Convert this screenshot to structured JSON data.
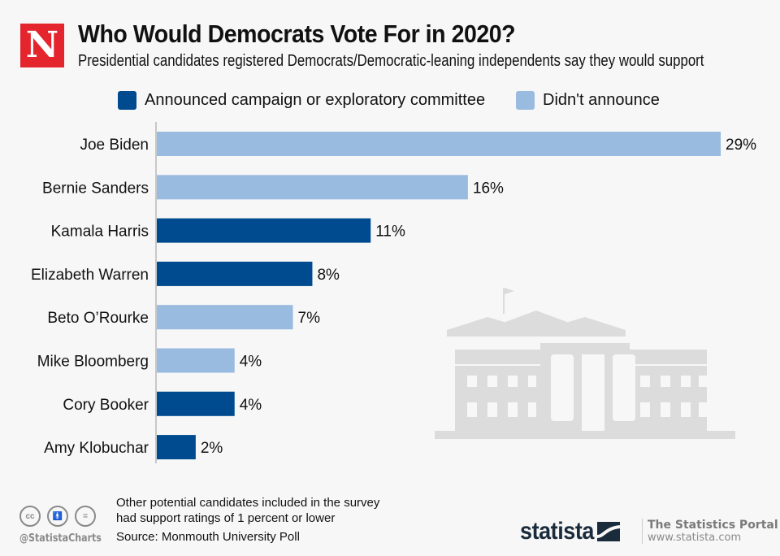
{
  "header": {
    "logo_letter": "N",
    "title": "Who Would Democrats Vote For in 2020?",
    "subtitle": "Presidential candidates registered Democrats/Democratic-leaning independents say they would support"
  },
  "colors": {
    "announced": "#004a8f",
    "not_announced": "#99bbdf",
    "logo_red": "#e4252e",
    "brand_dark": "#1a2b3c"
  },
  "chart_data": {
    "type": "bar",
    "orientation": "horizontal",
    "title": "Who Would Democrats Vote For in 2020?",
    "subtitle": "Presidential candidates registered Democrats/Democratic-leaning independents say they would support",
    "xlabel": "",
    "ylabel": "",
    "unit": "%",
    "xlim": [
      0,
      29
    ],
    "grid": false,
    "legend_position": "top",
    "legend": [
      {
        "key": "announced",
        "label": "Announced campaign or exploratory committee"
      },
      {
        "key": "not_announced",
        "label": "Didn't announce"
      }
    ],
    "categories": [
      "Joe Biden",
      "Bernie Sanders",
      "Kamala Harris",
      "Elizabeth Warren",
      "Beto O’Rourke",
      "Mike Bloomberg",
      "Cory Booker",
      "Amy Klobuchar"
    ],
    "values": [
      29,
      16,
      11,
      8,
      7,
      4,
      4,
      2
    ],
    "labels": [
      "29%",
      "16%",
      "11%",
      "8%",
      "7%",
      "4%",
      "4%",
      "2%"
    ],
    "status": [
      "not_announced",
      "not_announced",
      "announced",
      "announced",
      "not_announced",
      "not_announced",
      "announced",
      "announced"
    ]
  },
  "footer": {
    "note_line1": "Other potential candidates included in the survey",
    "note_line2": "had support ratings of 1 percent or lower",
    "source": "Source: Monmouth University Poll",
    "handle": "@StatistaCharts",
    "cc_icons": [
      "cc",
      "by",
      "nd"
    ],
    "brand": "statista",
    "portal_title": "The Statistics Portal",
    "portal_url": "www.statista.com"
  }
}
